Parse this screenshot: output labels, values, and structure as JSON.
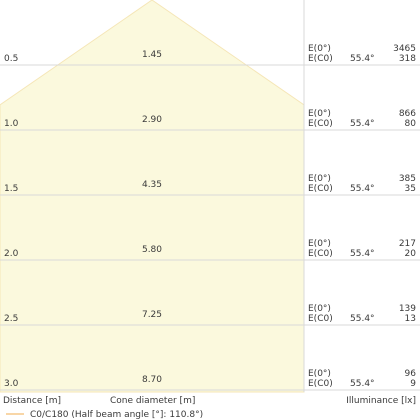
{
  "chart_data": {
    "type": "table",
    "beam_angle_deg": 110.8,
    "color": "#fbf9dd",
    "edge_color": "#f5e6b7",
    "rows": [
      {
        "distance": "0.5",
        "diameter": "1.45",
        "e0_label": "E(0°)",
        "ec0_label": "E(C0)",
        "angle": "55.4°",
        "e0_lux": "3465",
        "ec0_lux": "318"
      },
      {
        "distance": "1.0",
        "diameter": "2.90",
        "e0_label": "E(0°)",
        "ec0_label": "E(C0)",
        "angle": "55.4°",
        "e0_lux": "866",
        "ec0_lux": "80"
      },
      {
        "distance": "1.5",
        "diameter": "4.35",
        "e0_label": "E(0°)",
        "ec0_label": "E(C0)",
        "angle": "55.4°",
        "e0_lux": "385",
        "ec0_lux": "35"
      },
      {
        "distance": "2.0",
        "diameter": "5.80",
        "e0_label": "E(0°)",
        "ec0_label": "E(C0)",
        "angle": "55.4°",
        "e0_lux": "217",
        "ec0_lux": "20"
      },
      {
        "distance": "2.5",
        "diameter": "7.25",
        "e0_label": "E(0°)",
        "ec0_label": "E(C0)",
        "angle": "55.4°",
        "e0_lux": "139",
        "ec0_lux": "13"
      },
      {
        "distance": "3.0",
        "diameter": "8.70",
        "e0_label": "E(0°)",
        "ec0_label": "E(C0)",
        "angle": "55.4°",
        "e0_lux": "96",
        "ec0_lux": "9"
      }
    ],
    "footer": {
      "distance_label": "Distance [m]",
      "diameter_label": "Cone diameter [m]",
      "illuminance_label": "Illuminance [lx]"
    },
    "legend": {
      "label": "C0/C180 (Half beam angle [°]: 110.8°)",
      "color": "#f5c98a"
    }
  }
}
